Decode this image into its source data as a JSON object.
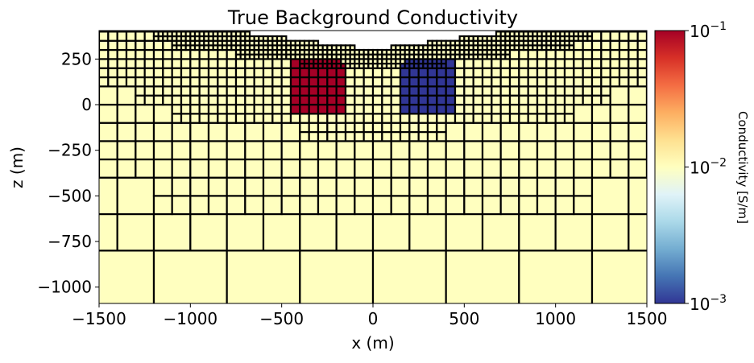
{
  "chart_data": {
    "type": "heatmap",
    "title": "True Background Conductivity",
    "xlabel": "x (m)",
    "ylabel": "z (m)",
    "xlim": [
      -1500,
      1500
    ],
    "ylim": [
      -1093,
      406
    ],
    "xticks": [
      -1500,
      -1000,
      -500,
      0,
      500,
      1000,
      1500
    ],
    "xtick_labels": [
      "−1500",
      "−1000",
      "−500",
      "0",
      "500",
      "1000",
      "1500"
    ],
    "yticks": [
      250,
      0,
      -250,
      -500,
      -750,
      -1000
    ],
    "ytick_labels": [
      "250",
      "0",
      "−250",
      "−500",
      "−750",
      "−1000"
    ],
    "grid": false,
    "colormap": "RdYlBu_r",
    "colorbar": {
      "label": "Conductivity [S/m]",
      "scale": "log",
      "range": [
        0.001,
        0.1
      ],
      "ticks": [
        {
          "value": 0.1,
          "base": "10",
          "exp": "−1"
        },
        {
          "value": 0.01,
          "base": "10",
          "exp": "−2"
        },
        {
          "value": 0.001,
          "base": "10",
          "exp": "−3"
        }
      ]
    },
    "background_conductivity": 0.01,
    "anomalies": [
      {
        "name": "conductive block",
        "center_x": -300,
        "center_z": 100,
        "conductivity": 0.1,
        "color": "#a50026"
      },
      {
        "name": "resistive block",
        "center_x": 300,
        "center_z": 100,
        "conductivity": 0.001,
        "color": "#313695"
      }
    ],
    "colors": {
      "background": "#ffffbf",
      "mesh_lines": "#000000"
    }
  }
}
